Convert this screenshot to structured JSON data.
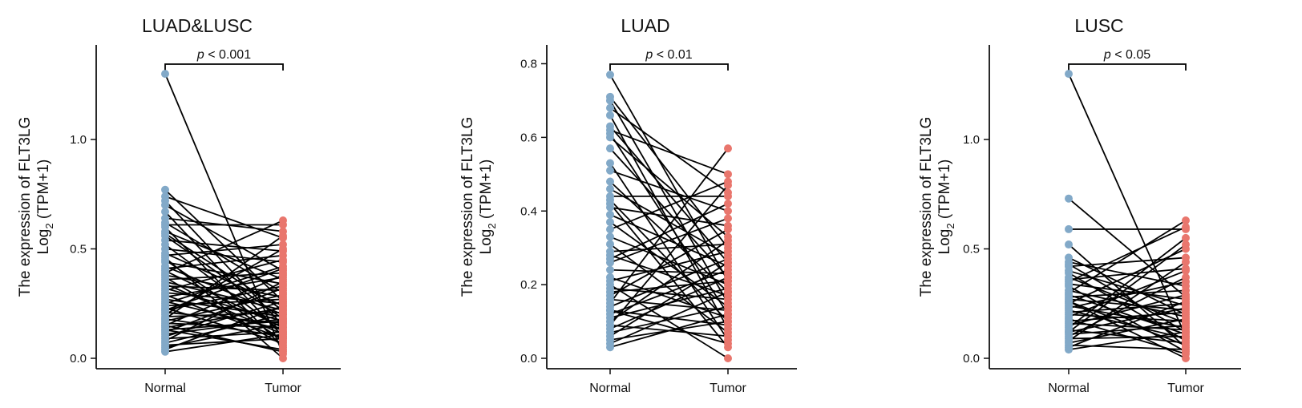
{
  "figure": {
    "panels": [
      {
        "title": "LUAD&LUSC",
        "ylabel_line1": "The expression of FLT3LG",
        "ylabel_line2_main": "Log",
        "ylabel_line2_sub": "2",
        "ylabel_line2_rest": " (TPM+1)",
        "significance": {
          "p_symbol": "p",
          "relation": " < 0.001"
        }
      },
      {
        "title": "LUAD",
        "ylabel_line1": "The expression of FLT3LG",
        "ylabel_line2_main": "Log",
        "ylabel_line2_sub": "2",
        "ylabel_line2_rest": " (TPM+1)",
        "significance": {
          "p_symbol": "p",
          "relation": " < 0.01"
        }
      },
      {
        "title": "LUSC",
        "ylabel_line1": "The expression of FLT3LG",
        "ylabel_line2_main": "Log",
        "ylabel_line2_sub": "2",
        "ylabel_line2_rest": " (TPM+1)",
        "significance": {
          "p_symbol": "p",
          "relation": " < 0.05"
        }
      }
    ]
  },
  "chart_data": [
    {
      "type": "scatter",
      "subtype": "paired-dot-plot",
      "title": "LUAD&LUSC",
      "ylabel": "The expression of FLT3LG Log2 (TPM+1)",
      "categories": [
        "Normal",
        "Tumor"
      ],
      "ylim": [
        -0.02,
        1.4
      ],
      "yticks": [
        0.0,
        0.5,
        1.0
      ],
      "ytick_labels": [
        "0.0",
        "0.5",
        "1.0"
      ],
      "grid": false,
      "significance": "p < 0.001",
      "colors": {
        "Normal": "#82a9c8",
        "Tumor": "#e9766d"
      },
      "pairs": [
        [
          1.3,
          0.02
        ],
        [
          0.77,
          0.26
        ],
        [
          0.74,
          0.55
        ],
        [
          0.72,
          0.15
        ],
        [
          0.7,
          0.4
        ],
        [
          0.67,
          0.1
        ],
        [
          0.64,
          0.58
        ],
        [
          0.62,
          0.3
        ],
        [
          0.61,
          0.61
        ],
        [
          0.6,
          0.05
        ],
        [
          0.58,
          0.36
        ],
        [
          0.56,
          0.18
        ],
        [
          0.54,
          0.49
        ],
        [
          0.52,
          0.12
        ],
        [
          0.5,
          0.44
        ],
        [
          0.48,
          0.24
        ],
        [
          0.47,
          0.52
        ],
        [
          0.45,
          0.08
        ],
        [
          0.44,
          0.34
        ],
        [
          0.42,
          0.2
        ],
        [
          0.41,
          0.47
        ],
        [
          0.4,
          0.14
        ],
        [
          0.38,
          0.28
        ],
        [
          0.37,
          0.06
        ],
        [
          0.36,
          0.39
        ],
        [
          0.35,
          0.22
        ],
        [
          0.34,
          0.11
        ],
        [
          0.33,
          0.31
        ],
        [
          0.32,
          0.17
        ],
        [
          0.31,
          0.45
        ],
        [
          0.3,
          0.25
        ],
        [
          0.29,
          0.09
        ],
        [
          0.28,
          0.37
        ],
        [
          0.27,
          0.19
        ],
        [
          0.26,
          0.13
        ],
        [
          0.25,
          0.42
        ],
        [
          0.24,
          0.27
        ],
        [
          0.23,
          0.07
        ],
        [
          0.22,
          0.33
        ],
        [
          0.21,
          0.16
        ],
        [
          0.2,
          0.5
        ],
        [
          0.19,
          0.21
        ],
        [
          0.18,
          0.1
        ],
        [
          0.17,
          0.29
        ],
        [
          0.16,
          0.14
        ],
        [
          0.15,
          0.38
        ],
        [
          0.14,
          0.23
        ],
        [
          0.13,
          0.04
        ],
        [
          0.12,
          0.32
        ],
        [
          0.11,
          0.18
        ],
        [
          0.1,
          0.26
        ],
        [
          0.09,
          0.12
        ],
        [
          0.08,
          0.35
        ],
        [
          0.07,
          0.2
        ],
        [
          0.06,
          0.09
        ],
        [
          0.05,
          0.16
        ],
        [
          0.04,
          0.24
        ],
        [
          0.03,
          0.11
        ],
        [
          0.39,
          0.63
        ],
        [
          0.57,
          0.22
        ],
        [
          0.46,
          0.0
        ],
        [
          0.15,
          0.03
        ],
        [
          0.22,
          0.41
        ],
        [
          0.13,
          0.17
        ],
        [
          0.18,
          0.56
        ]
      ]
    },
    {
      "type": "scatter",
      "subtype": "paired-dot-plot",
      "title": "LUAD",
      "ylabel": "The expression of FLT3LG Log2 (TPM+1)",
      "categories": [
        "Normal",
        "Tumor"
      ],
      "ylim": [
        -0.01,
        0.8
      ],
      "yticks": [
        0.0,
        0.2,
        0.4,
        0.6,
        0.8
      ],
      "ytick_labels": [
        "0.0",
        "0.2",
        "0.4",
        "0.6",
        "0.8"
      ],
      "grid": false,
      "significance": "p < 0.01",
      "colors": {
        "Normal": "#82a9c8",
        "Tumor": "#e9766d"
      },
      "pairs": [
        [
          0.77,
          0.21
        ],
        [
          0.71,
          0.3
        ],
        [
          0.7,
          0.15
        ],
        [
          0.68,
          0.45
        ],
        [
          0.66,
          0.08
        ],
        [
          0.63,
          0.26
        ],
        [
          0.62,
          0.5
        ],
        [
          0.61,
          0.12
        ],
        [
          0.6,
          0.33
        ],
        [
          0.57,
          0.22
        ],
        [
          0.53,
          0.05
        ],
        [
          0.51,
          0.4
        ],
        [
          0.48,
          0.18
        ],
        [
          0.46,
          0.28
        ],
        [
          0.44,
          0.44
        ],
        [
          0.43,
          0.1
        ],
        [
          0.41,
          0.36
        ],
        [
          0.39,
          0.25
        ],
        [
          0.37,
          0.14
        ],
        [
          0.35,
          0.48
        ],
        [
          0.33,
          0.2
        ],
        [
          0.31,
          0.07
        ],
        [
          0.29,
          0.31
        ],
        [
          0.28,
          0.17
        ],
        [
          0.26,
          0.38
        ],
        [
          0.24,
          0.23
        ],
        [
          0.22,
          0.11
        ],
        [
          0.21,
          0.29
        ],
        [
          0.19,
          0.16
        ],
        [
          0.17,
          0.35
        ],
        [
          0.16,
          0.13
        ],
        [
          0.15,
          0.57
        ],
        [
          0.14,
          0.27
        ],
        [
          0.13,
          0.09
        ],
        [
          0.12,
          0.24
        ],
        [
          0.11,
          0.19
        ],
        [
          0.1,
          0.32
        ],
        [
          0.09,
          0.06
        ],
        [
          0.08,
          0.22
        ],
        [
          0.07,
          0.14
        ],
        [
          0.06,
          0.26
        ],
        [
          0.05,
          0.1
        ],
        [
          0.04,
          0.18
        ],
        [
          0.03,
          0.12
        ],
        [
          0.2,
          0.0
        ],
        [
          0.27,
          0.42
        ],
        [
          0.42,
          0.03
        ],
        [
          0.09,
          0.47
        ],
        [
          0.18,
          0.21
        ],
        [
          0.13,
          0.04
        ]
      ]
    },
    {
      "type": "scatter",
      "subtype": "paired-dot-plot",
      "title": "LUSC",
      "ylabel": "The expression of FLT3LG Log2 (TPM+1)",
      "categories": [
        "Normal",
        "Tumor"
      ],
      "ylim": [
        -0.02,
        1.4
      ],
      "yticks": [
        0.0,
        0.5,
        1.0
      ],
      "ytick_labels": [
        "0.0",
        "0.5",
        "1.0"
      ],
      "grid": false,
      "significance": "p < 0.05",
      "colors": {
        "Normal": "#82a9c8",
        "Tumor": "#e9766d"
      },
      "pairs": [
        [
          1.3,
          0.1
        ],
        [
          0.73,
          0.28
        ],
        [
          0.59,
          0.59
        ],
        [
          0.52,
          0.05
        ],
        [
          0.46,
          0.2
        ],
        [
          0.44,
          0.33
        ],
        [
          0.43,
          0.12
        ],
        [
          0.42,
          0.46
        ],
        [
          0.4,
          0.24
        ],
        [
          0.39,
          0.08
        ],
        [
          0.37,
          0.16
        ],
        [
          0.36,
          0.41
        ],
        [
          0.34,
          0.27
        ],
        [
          0.33,
          0.03
        ],
        [
          0.31,
          0.19
        ],
        [
          0.3,
          0.63
        ],
        [
          0.29,
          0.11
        ],
        [
          0.28,
          0.31
        ],
        [
          0.27,
          0.22
        ],
        [
          0.26,
          0.06
        ],
        [
          0.25,
          0.5
        ],
        [
          0.24,
          0.14
        ],
        [
          0.23,
          0.35
        ],
        [
          0.22,
          0.09
        ],
        [
          0.21,
          0.25
        ],
        [
          0.2,
          0.17
        ],
        [
          0.19,
          0.4
        ],
        [
          0.18,
          0.02
        ],
        [
          0.17,
          0.21
        ],
        [
          0.16,
          0.13
        ],
        [
          0.15,
          0.29
        ],
        [
          0.14,
          0.55
        ],
        [
          0.13,
          0.07
        ],
        [
          0.12,
          0.23
        ],
        [
          0.11,
          0.15
        ],
        [
          0.1,
          0.37
        ],
        [
          0.09,
          0.1
        ],
        [
          0.08,
          0.44
        ],
        [
          0.07,
          0.18
        ],
        [
          0.06,
          0.04
        ],
        [
          0.05,
          0.26
        ],
        [
          0.04,
          0.12
        ],
        [
          0.26,
          0.0
        ],
        [
          0.35,
          0.6
        ],
        [
          0.12,
          0.52
        ]
      ]
    }
  ]
}
